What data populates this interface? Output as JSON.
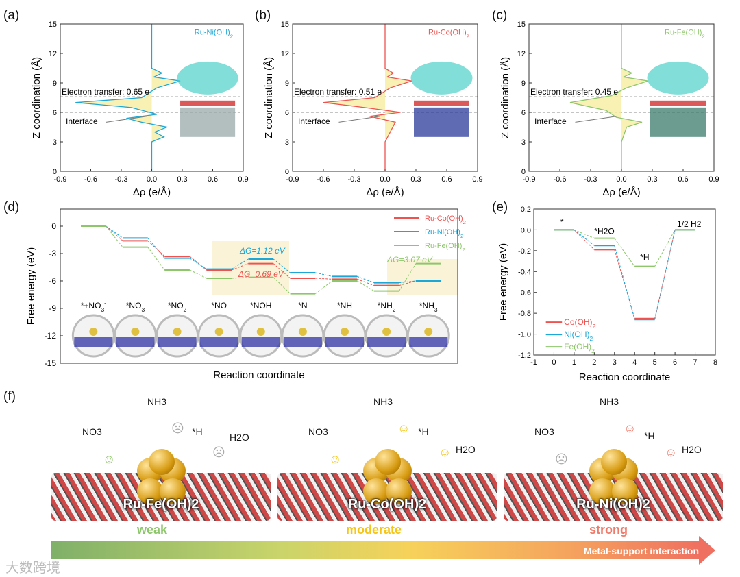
{
  "panels": {
    "a": "(a)",
    "b": "(b)",
    "c": "(c)",
    "d": "(d)",
    "e": "(e)",
    "f": "(f)"
  },
  "chart_data": [
    {
      "type": "line",
      "panel": "a",
      "legend": "Ru-Ni(OH)2",
      "color": "#1ba7d8",
      "xlabel": "Δρ (e/Å)",
      "ylabel": "Z coordination (Å)",
      "xlim": [
        -0.9,
        0.9
      ],
      "ylim": [
        0,
        15
      ],
      "xticks": [
        "-0.9",
        "-0.6",
        "-0.3",
        "0.0",
        "0.3",
        "0.6",
        "0.9"
      ],
      "yticks": [
        "0",
        "3",
        "6",
        "9",
        "12",
        "15"
      ],
      "annotations": [
        "Electron transfer: 0.65 e",
        "Interface"
      ],
      "profile": [
        [
          0,
          0
        ],
        [
          3,
          0
        ],
        [
          3.5,
          0.12
        ],
        [
          4,
          0.03
        ],
        [
          4.5,
          0.15
        ],
        [
          5,
          -0.1
        ],
        [
          5.4,
          -0.25
        ],
        [
          5.8,
          0.05
        ],
        [
          6.5,
          -0.2
        ],
        [
          7,
          -0.75
        ],
        [
          7.5,
          -0.1
        ],
        [
          8.5,
          0.05
        ],
        [
          9.2,
          0.28
        ],
        [
          9.6,
          0.02
        ],
        [
          10,
          0.1
        ],
        [
          10.5,
          0
        ],
        [
          15,
          0
        ]
      ]
    },
    {
      "type": "line",
      "panel": "b",
      "legend": "Ru-Co(OH)2",
      "color": "#ef5350",
      "xlabel": "Δρ (e/Å)",
      "ylabel": "Z coordination (Å)",
      "xlim": [
        -0.9,
        0.9
      ],
      "ylim": [
        0,
        15
      ],
      "xticks": [
        "-0.9",
        "-0.6",
        "-0.3",
        "0.0",
        "0.3",
        "0.6",
        "0.9"
      ],
      "yticks": [
        "0",
        "3",
        "6",
        "9",
        "12",
        "15"
      ],
      "annotations": [
        "Electron transfer: 0.51 e",
        "Interface"
      ],
      "profile": [
        [
          0,
          0
        ],
        [
          3,
          0
        ],
        [
          4,
          0.05
        ],
        [
          5,
          0.1
        ],
        [
          5.6,
          -0.15
        ],
        [
          6,
          0.15
        ],
        [
          6.5,
          -0.2
        ],
        [
          7,
          -0.6
        ],
        [
          7.5,
          -0.1
        ],
        [
          8.5,
          0.05
        ],
        [
          9.2,
          0.26
        ],
        [
          9.6,
          0.02
        ],
        [
          10,
          0.08
        ],
        [
          10.5,
          0
        ],
        [
          15,
          0
        ]
      ]
    },
    {
      "type": "line",
      "panel": "c",
      "legend": "Ru-Fe(OH)2",
      "color": "#8dc66b",
      "xlabel": "Δρ (e/Å)",
      "ylabel": "Z coordination (Å)",
      "xlim": [
        -0.9,
        0.9
      ],
      "ylim": [
        0,
        15
      ],
      "xticks": [
        "-0.9",
        "-0.6",
        "-0.3",
        "0.0",
        "0.3",
        "0.6",
        "0.9"
      ],
      "yticks": [
        "0",
        "3",
        "6",
        "9",
        "12",
        "15"
      ],
      "annotations": [
        "Electron transfer: 0.45 e",
        "Interface"
      ],
      "profile": [
        [
          0,
          0
        ],
        [
          3,
          0
        ],
        [
          4.5,
          0.05
        ],
        [
          5,
          0.2
        ],
        [
          5.5,
          -0.05
        ],
        [
          6.2,
          -0.15
        ],
        [
          7,
          -0.5
        ],
        [
          7.7,
          -0.1
        ],
        [
          8.5,
          0.05
        ],
        [
          9.2,
          0.26
        ],
        [
          9.6,
          0.02
        ],
        [
          10,
          0.1
        ],
        [
          10.5,
          0
        ],
        [
          15,
          0
        ]
      ]
    },
    {
      "type": "line",
      "panel": "d",
      "xlabel": "Reaction coordinate",
      "ylabel": "Free energy (eV)",
      "ylim": [
        -15,
        1.9
      ],
      "yticks": [
        "0",
        "-3",
        "-6",
        "-9",
        "-12",
        "-15"
      ],
      "categories": [
        "*+NO3-",
        "*NO3",
        "*NO2",
        "*NO",
        "*NOH",
        "*N",
        "*NH",
        "*NH2",
        "*NH3"
      ],
      "category_labels": [
        [
          "*+NO",
          "3",
          "-"
        ],
        [
          "*NO",
          "3",
          ""
        ],
        [
          "*NO",
          "2",
          ""
        ],
        [
          "*NO",
          "",
          ""
        ],
        [
          "*NOH",
          "",
          ""
        ],
        [
          "*N",
          "",
          ""
        ],
        [
          "*NH",
          "",
          ""
        ],
        [
          "*NH",
          "2",
          ""
        ],
        [
          "*NH",
          "3",
          ""
        ]
      ],
      "series": [
        {
          "name": "Ru-Co(OH)2",
          "color": "#ef5350",
          "values": [
            0,
            -1.6,
            -3.3,
            -4.8,
            -4.1,
            -5.7,
            -5.8,
            -6.5,
            -6.0
          ]
        },
        {
          "name": "Ru-Ni(OH)2",
          "color": "#1ba7d8",
          "values": [
            0,
            -1.3,
            -3.5,
            -4.7,
            -3.6,
            -5.1,
            -5.5,
            -6.2,
            -6.0
          ]
        },
        {
          "name": "Ru-Fe(OH)2",
          "color": "#8dc66b",
          "values": [
            0,
            -2.3,
            -4.8,
            -5.7,
            -5.6,
            -7.4,
            -6.0,
            -7.1,
            -4.1
          ]
        }
      ],
      "annotations": [
        {
          "text": "ΔG=1.12 eV",
          "color": "#1ba7d8"
        },
        {
          "text": "ΔG=0.69 eV",
          "color": "#ef5350"
        },
        {
          "text": "ΔG=3.07 eV",
          "color": "#8dc66b"
        }
      ]
    },
    {
      "type": "line",
      "panel": "e",
      "xlabel": "Reaction coordinate",
      "ylabel": "Free energy (eV)",
      "xlim": [
        -1,
        8
      ],
      "ylim": [
        -1.2,
        0.2
      ],
      "xticks": [
        "-1",
        "0",
        "1",
        "2",
        "3",
        "4",
        "5",
        "6",
        "7",
        "8"
      ],
      "yticks": [
        "0.2",
        "0.0",
        "-0.2",
        "-0.4",
        "-0.6",
        "-0.8",
        "-1.0",
        "-1.2"
      ],
      "states": [
        "*",
        "*H2O",
        "*H",
        "1/2 H2"
      ],
      "series": [
        {
          "name": "Co(OH)2",
          "color": "#ef5350",
          "values": [
            0,
            -0.19,
            -0.85,
            0
          ]
        },
        {
          "name": "Ni(OH)2",
          "color": "#1ba7d8",
          "values": [
            0,
            -0.15,
            -0.86,
            0
          ]
        },
        {
          "name": "Fe(OH)2",
          "color": "#8dc66b",
          "values": [
            0,
            -0.08,
            -0.35,
            0
          ]
        }
      ]
    }
  ],
  "scenes": [
    {
      "catalyst": "Ru-Fe(OH)2",
      "strength": "weak",
      "color": "#8dc66b",
      "nh3": "NH3",
      "no3": "NO3",
      "h": "*H",
      "h2o": "H2O"
    },
    {
      "catalyst": "Ru-Co(OH)2",
      "strength": "moderate",
      "color": "#f5c518",
      "nh3": "NH3",
      "no3": "NO3",
      "h": "*H",
      "h2o": "H2O"
    },
    {
      "catalyst": "Ru-Ni(OH)2",
      "strength": "strong",
      "color": "#ef7b6b",
      "nh3": "NH3",
      "no3": "NO3",
      "h": "*H",
      "h2o": "H2O"
    }
  ],
  "arrow_label": "Metal-support interaction",
  "watermark": "大数跨境"
}
